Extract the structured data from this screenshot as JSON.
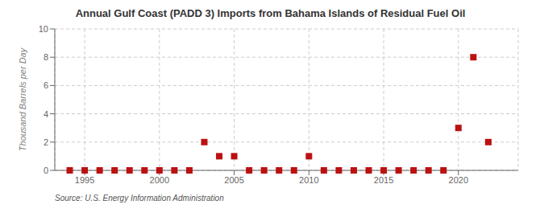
{
  "chart_data": {
    "type": "scatter",
    "title": "Annual Gulf Coast (PADD 3) Imports from Bahama Islands of Residual Fuel Oil",
    "ylabel": "Thousand Barrels per Day",
    "annotations": [
      "Source: U.S. Energy Information Administration"
    ],
    "x": [
      1994,
      1995,
      1996,
      1997,
      1998,
      1999,
      2000,
      2001,
      2002,
      2003,
      2004,
      2005,
      2006,
      2007,
      2008,
      2009,
      2010,
      2011,
      2012,
      2013,
      2014,
      2015,
      2016,
      2017,
      2018,
      2019,
      2020,
      2021,
      2022
    ],
    "values": [
      0,
      0,
      0,
      0,
      0,
      0,
      0,
      0,
      0,
      2,
      1,
      1,
      0,
      0,
      0,
      0,
      1,
      0,
      0,
      0,
      0,
      0,
      0,
      0,
      0,
      0,
      3,
      8,
      2
    ],
    "color": "#bb1111",
    "marker": "square",
    "xlim": [
      1993,
      2024
    ],
    "xticks": [
      1995,
      2000,
      2005,
      2010,
      2015,
      2020
    ],
    "ylim": [
      0,
      10
    ],
    "yticks": [
      0,
      2,
      4,
      6,
      8,
      10
    ],
    "grid": true
  }
}
